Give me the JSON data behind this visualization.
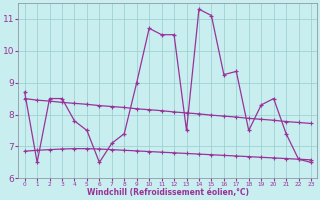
{
  "xlabel": "Windchill (Refroidissement éolien,°C)",
  "ylabel": "",
  "bg_color": "#c8eef0",
  "line_color": "#993399",
  "grid_color": "#99cccc",
  "x": [
    0,
    1,
    2,
    3,
    4,
    5,
    6,
    7,
    8,
    9,
    10,
    11,
    12,
    13,
    14,
    15,
    16,
    17,
    18,
    19,
    20,
    21,
    22,
    23
  ],
  "y_main": [
    8.7,
    6.5,
    8.5,
    8.5,
    7.8,
    7.5,
    6.5,
    7.1,
    7.4,
    9.0,
    10.7,
    10.5,
    10.5,
    7.5,
    11.3,
    11.1,
    9.25,
    9.35,
    7.5,
    8.3,
    8.5,
    7.4,
    6.6,
    6.5
  ],
  "y_trend1": [
    8.5,
    8.45,
    8.42,
    8.38,
    8.35,
    8.32,
    8.28,
    8.25,
    8.22,
    8.18,
    8.15,
    8.12,
    8.08,
    8.05,
    8.02,
    7.98,
    7.95,
    7.92,
    7.88,
    7.85,
    7.82,
    7.78,
    7.75,
    7.72
  ],
  "y_trend2": [
    6.85,
    6.88,
    6.9,
    6.92,
    6.93,
    6.93,
    6.92,
    6.9,
    6.88,
    6.86,
    6.84,
    6.82,
    6.8,
    6.78,
    6.76,
    6.74,
    6.72,
    6.7,
    6.68,
    6.66,
    6.64,
    6.62,
    6.6,
    6.58
  ],
  "ylim": [
    6,
    11.5
  ],
  "yticks": [
    6,
    7,
    8,
    9,
    10,
    11
  ],
  "xlim": [
    -0.5,
    23.5
  ]
}
